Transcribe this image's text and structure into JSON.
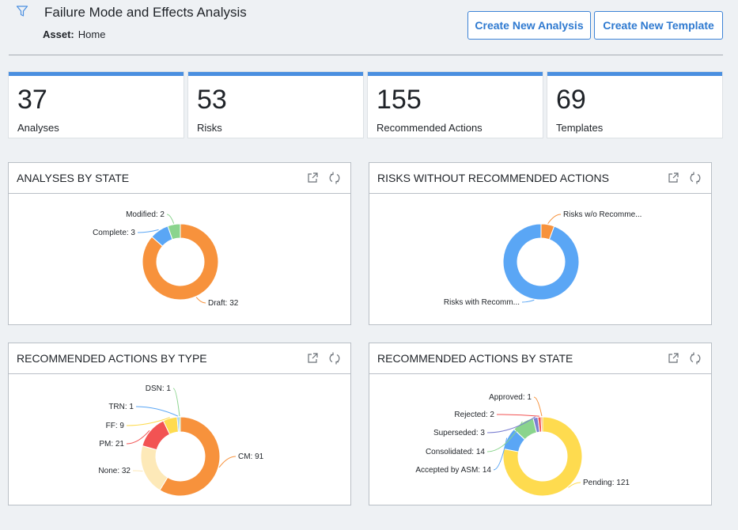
{
  "header": {
    "title": "Failure Mode and Effects Analysis",
    "asset_label": "Asset:",
    "asset_value": "Home",
    "filter_icon": "filter-icon",
    "create_analysis_label": "Create New Analysis",
    "create_template_label": "Create New Template"
  },
  "tiles": [
    {
      "value": "37",
      "label": "Analyses"
    },
    {
      "value": "53",
      "label": "Risks"
    },
    {
      "value": "155",
      "label": "Recommended Actions"
    },
    {
      "value": "69",
      "label": "Templates"
    }
  ],
  "colors": {
    "accent": "#4a8fe0",
    "button_text": "#2f7ad0",
    "orange": "#f7923c",
    "blue": "#5aa6f5",
    "green": "#8ad48d",
    "red": "#f25353",
    "yellow": "#fedb4f",
    "light_yellow": "#fde9b8"
  },
  "panels": [
    {
      "title": "ANALYSES BY STATE",
      "icons": [
        "open-external-icon",
        "refresh-icon"
      ]
    },
    {
      "title": "RISKS WITHOUT RECOMMENDED ACTIONS",
      "icons": [
        "open-external-icon",
        "refresh-icon"
      ]
    },
    {
      "title": "RECOMMENDED ACTIONS BY TYPE",
      "icons": [
        "open-external-icon",
        "refresh-icon"
      ]
    },
    {
      "title": "RECOMMENDED ACTIONS BY STATE",
      "icons": [
        "open-external-icon",
        "refresh-icon"
      ]
    }
  ],
  "chart_data": [
    {
      "type": "pie",
      "title": "ANALYSES BY STATE",
      "slices": [
        {
          "label": "Draft: 32",
          "value": 32,
          "color": "#f7923c"
        },
        {
          "label": "Complete: 3",
          "value": 3,
          "color": "#5aa6f5"
        },
        {
          "label": "Modified: 2",
          "value": 2,
          "color": "#8ad48d"
        }
      ]
    },
    {
      "type": "pie",
      "title": "RISKS WITHOUT RECOMMENDED ACTIONS",
      "slices": [
        {
          "label": "Risks w/o Recomme...",
          "value": 3,
          "color": "#f7923c"
        },
        {
          "label": "Risks with Recomm...",
          "value": 50,
          "color": "#5aa6f5"
        }
      ]
    },
    {
      "type": "pie",
      "title": "RECOMMENDED ACTIONS BY TYPE",
      "slices": [
        {
          "label": "CM: 91",
          "value": 91,
          "color": "#f7923c"
        },
        {
          "label": "None: 32",
          "value": 32,
          "color": "#fde9b8"
        },
        {
          "label": "PM: 21",
          "value": 21,
          "color": "#f25353"
        },
        {
          "label": "FF: 9",
          "value": 9,
          "color": "#fedb4f"
        },
        {
          "label": "TRN: 1",
          "value": 1,
          "color": "#5aa6f5"
        },
        {
          "label": "DSN: 1",
          "value": 1,
          "color": "#8ad48d"
        }
      ]
    },
    {
      "type": "pie",
      "title": "RECOMMENDED ACTIONS BY STATE",
      "slices": [
        {
          "label": "Pending: 121",
          "value": 121,
          "color": "#fedb4f"
        },
        {
          "label": "Accepted by ASM: 14",
          "value": 14,
          "color": "#5aa6f5"
        },
        {
          "label": "Consolidated: 14",
          "value": 14,
          "color": "#8ad48d"
        },
        {
          "label": "Superseded: 3",
          "value": 3,
          "color": "#7b7fd1"
        },
        {
          "label": "Rejected: 2",
          "value": 2,
          "color": "#f25353"
        },
        {
          "label": "Approved: 1",
          "value": 1,
          "color": "#f7923c"
        }
      ]
    }
  ]
}
